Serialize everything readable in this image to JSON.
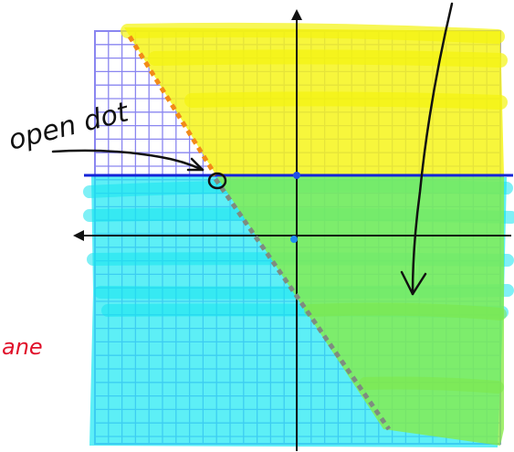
{
  "annotations": {
    "open_dot_label": "open dot",
    "plane_label_fragment": "ane"
  },
  "colors": {
    "grid": "#8a86f0",
    "yellow_region": "#f6f51a",
    "cyan_region": "#1ee9f2",
    "green_overlap": "#86ec45",
    "boundary_dashed": "#f28a18",
    "boundary_dashed_lower": "#7e8c80",
    "horizontal_boundary": "#1424d8",
    "axes": "#111111",
    "ink": "#111111",
    "red_ink": "#e0102a"
  },
  "icons": {
    "open_dot": "open-circle-icon",
    "axis_arrows": "arrowhead-icon"
  }
}
